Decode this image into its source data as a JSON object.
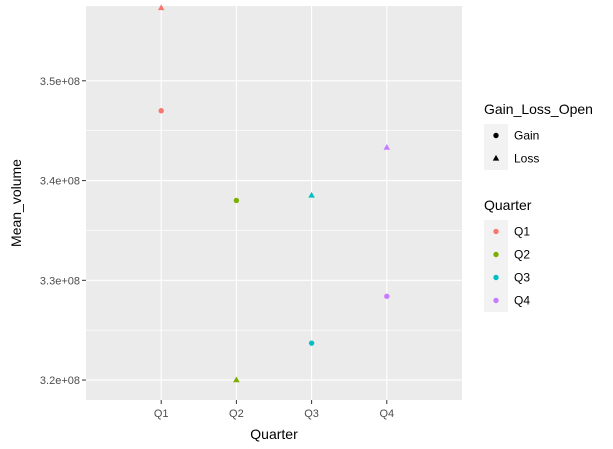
{
  "chart_data": {
    "type": "scatter",
    "xlabel": "Quarter",
    "ylabel": "Mean_volume",
    "categories": [
      "Q1",
      "Q2",
      "Q3",
      "Q4"
    ],
    "ylim": [
      318000000,
      357500000
    ],
    "yticks": [
      {
        "value": 320000000,
        "label": "3.2e+08"
      },
      {
        "value": 330000000,
        "label": "3.3e+08"
      },
      {
        "value": 340000000,
        "label": "3.4e+08"
      },
      {
        "value": 350000000,
        "label": "3.5e+08"
      }
    ],
    "points": [
      {
        "quarter": "Q1",
        "type": "Gain",
        "value": 347000000
      },
      {
        "quarter": "Q1",
        "type": "Loss",
        "value": 357300000
      },
      {
        "quarter": "Q2",
        "type": "Gain",
        "value": 338000000
      },
      {
        "quarter": "Q2",
        "type": "Loss",
        "value": 320000000
      },
      {
        "quarter": "Q3",
        "type": "Gain",
        "value": 323700000
      },
      {
        "quarter": "Q3",
        "type": "Loss",
        "value": 338500000
      },
      {
        "quarter": "Q4",
        "type": "Gain",
        "value": 328400000
      },
      {
        "quarter": "Q4",
        "type": "Loss",
        "value": 343300000
      }
    ],
    "grid": true,
    "panel_background": "#ebebeb",
    "legends": [
      {
        "title": "Gain_Loss_Open",
        "entries": [
          {
            "label": "Gain",
            "shape": "circle"
          },
          {
            "label": "Loss",
            "shape": "triangle"
          }
        ]
      },
      {
        "title": "Quarter",
        "entries": [
          {
            "label": "Q1",
            "color": "#F8766D"
          },
          {
            "label": "Q2",
            "color": "#7CAE00"
          },
          {
            "label": "Q3",
            "color": "#00BFC4"
          },
          {
            "label": "Q4",
            "color": "#C77CFF"
          }
        ]
      }
    ],
    "legend_position": "right"
  }
}
